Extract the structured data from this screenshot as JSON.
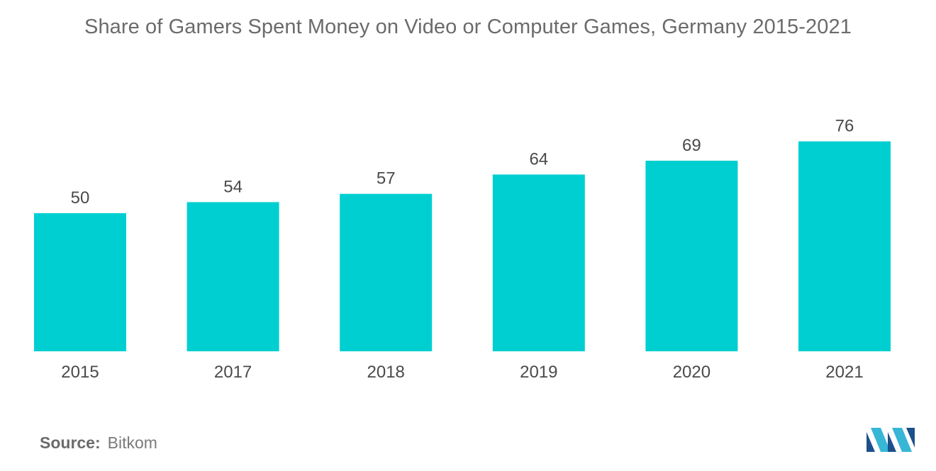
{
  "chart_data": {
    "type": "bar",
    "title": "Share of Gamers Spent Money on Video or Computer Games, Germany 2015-2021",
    "categories": [
      "2015",
      "2017",
      "2018",
      "2019",
      "2020",
      "2021"
    ],
    "values": [
      50,
      54,
      57,
      64,
      69,
      76
    ],
    "xlabel": "",
    "ylabel": "",
    "ylim": [
      0,
      100
    ],
    "grid": false,
    "bar_color": "#00cfd1"
  },
  "source": {
    "label": "Source:",
    "value": "Bitkom"
  },
  "logo": {
    "icon": "mordor-logo-icon",
    "colors": [
      "#1c4f8c",
      "#37b6d6"
    ]
  }
}
